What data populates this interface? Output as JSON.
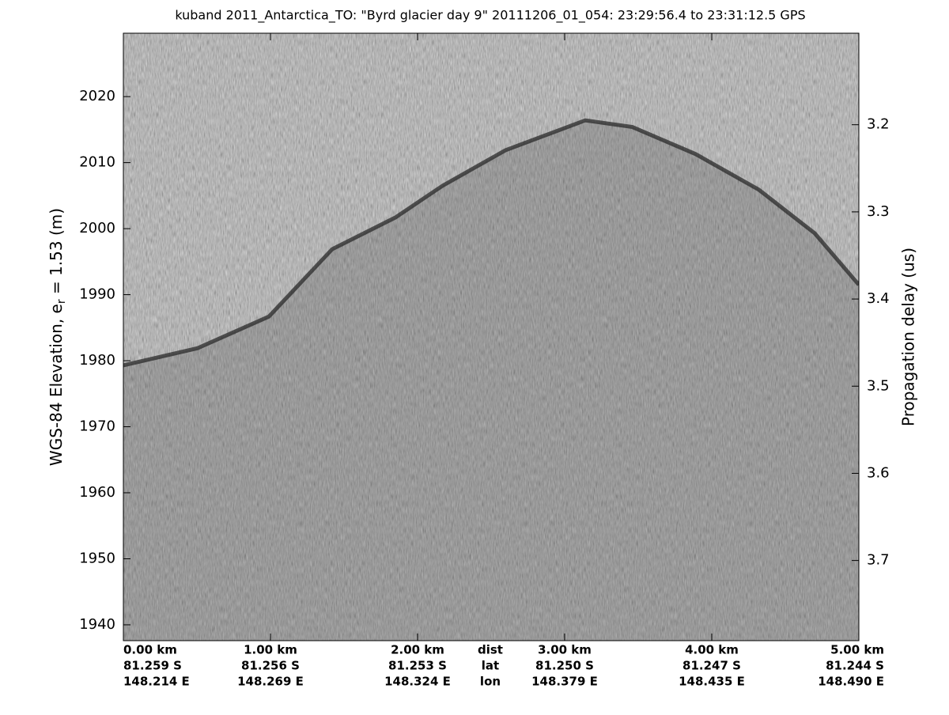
{
  "chart_data": {
    "type": "echogram",
    "title": "kuband 2011_Antarctica_TO: \"Byrd glacier day 9\"  20111206_01_054: 23:29:56.4 to 23:31:12.5 GPS",
    "ylabel": {
      "text": "WGS-84 Elevation, e",
      "subscript": "r",
      "rest": " = 1.53 (m)"
    },
    "y2label": "Propagation delay (us)",
    "xlim": [
      0,
      5
    ],
    "xticks": [
      {
        "value": 0,
        "label": "0.00 km"
      },
      {
        "value": 1,
        "label": "1.00 km"
      },
      {
        "value": 2,
        "label": "2.00 km"
      },
      {
        "value": 3,
        "label": "3.00 km"
      },
      {
        "value": 4,
        "label": "4.00 km"
      },
      {
        "value": 5,
        "label": "5.00 km"
      }
    ],
    "lat_labels": [
      "81.259 S",
      "81.256 S",
      "81.253 S",
      "81.250 S",
      "81.247 S",
      "81.244 S"
    ],
    "lon_labels": [
      "148.214 E",
      "148.269 E",
      "148.324 E",
      "148.379 E",
      "148.435 E",
      "148.490 E"
    ],
    "row_names": [
      "dist",
      "lat",
      "lon"
    ],
    "ylim": [
      1937.6,
      2029.6
    ],
    "yticks": [
      1940,
      1950,
      1960,
      1970,
      1980,
      1990,
      2000,
      2010,
      2020
    ],
    "y2lim": [
      3.792,
      3.095
    ],
    "y2ticks": [
      3.2,
      3.3,
      3.4,
      3.5,
      3.6,
      3.7
    ],
    "surface": {
      "color": "#2a2a2a",
      "x": [
        0,
        0.505,
        0.99,
        1.42,
        1.85,
        2.17,
        2.6,
        3.14,
        3.46,
        3.89,
        4.32,
        4.7,
        5
      ],
      "values": [
        1979.3,
        1981.9,
        1986.7,
        1996.9,
        2001.7,
        2006.5,
        2011.9,
        2016.4,
        2015.4,
        2011.3,
        2005.9,
        1999.3,
        1991.5
      ]
    }
  }
}
